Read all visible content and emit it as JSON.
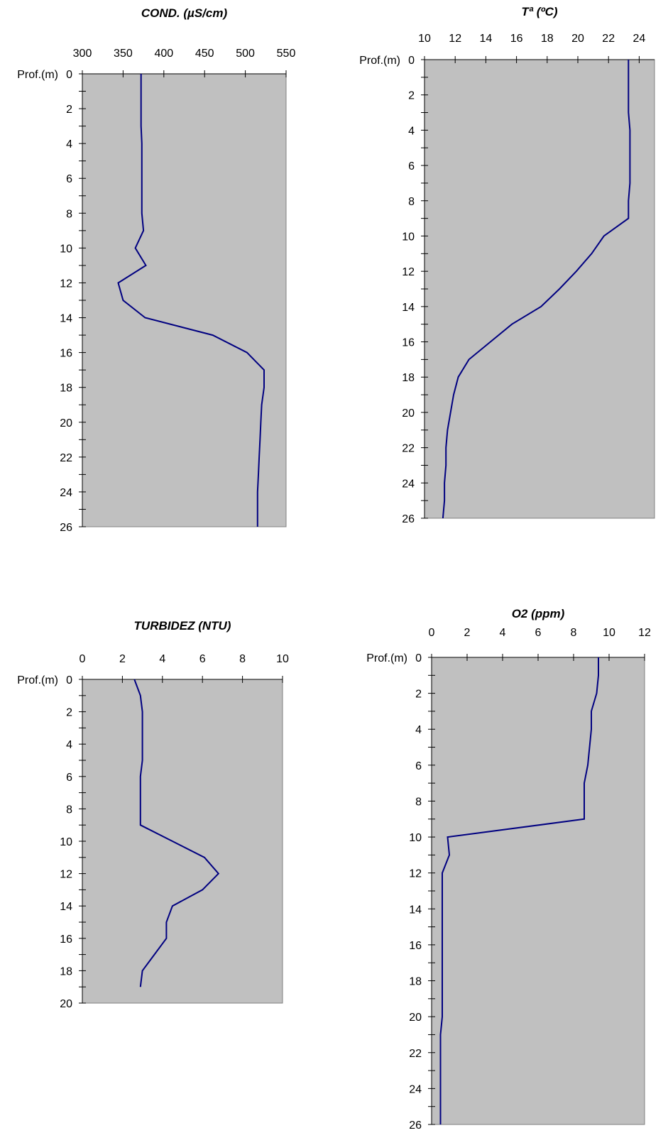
{
  "chart_data": [
    {
      "type": "line",
      "title": "COND. (µS/cm)",
      "ylabel": "Prof.(m)",
      "xlim": [
        300,
        550
      ],
      "ylim": [
        0,
        26
      ],
      "x_ticks": [
        300,
        350,
        400,
        450,
        500,
        550
      ],
      "y_ticks": [
        0,
        2,
        4,
        6,
        8,
        10,
        12,
        14,
        16,
        18,
        20,
        22,
        24,
        26
      ],
      "y_reversed": true,
      "x_axis_position": "top",
      "grid": false,
      "color": "#000080",
      "series": [
        {
          "depth": [
            0,
            1,
            2,
            3,
            4,
            5,
            6,
            7,
            8,
            9,
            10,
            11,
            12,
            13,
            14,
            15,
            16,
            17,
            18,
            19,
            20,
            21,
            22,
            23,
            24,
            25,
            26
          ],
          "values": [
            372,
            372,
            372,
            372,
            373,
            373,
            373,
            373,
            373,
            375,
            365,
            378,
            344,
            350,
            377,
            460,
            502,
            523,
            523,
            520,
            519,
            518,
            517,
            516,
            515,
            515,
            515
          ]
        }
      ]
    },
    {
      "type": "line",
      "title": "Tª (ºC)",
      "ylabel": "Prof.(m)",
      "xlim": [
        10,
        25
      ],
      "ylim": [
        0,
        26
      ],
      "x_ticks": [
        10,
        12,
        14,
        16,
        18,
        20,
        22,
        24
      ],
      "y_ticks": [
        0,
        2,
        4,
        6,
        8,
        10,
        12,
        14,
        16,
        18,
        20,
        22,
        24,
        26
      ],
      "y_reversed": true,
      "x_axis_position": "top",
      "grid": false,
      "color": "#000080",
      "series": [
        {
          "depth": [
            0,
            1,
            2,
            3,
            4,
            5,
            6,
            7,
            8,
            9,
            10,
            11,
            12,
            13,
            14,
            15,
            16,
            17,
            18,
            19,
            20,
            21,
            22,
            23,
            24,
            25,
            26
          ],
          "values": [
            23.3,
            23.3,
            23.3,
            23.3,
            23.4,
            23.4,
            23.4,
            23.4,
            23.3,
            23.3,
            21.7,
            20.9,
            19.9,
            18.8,
            17.6,
            15.7,
            14.3,
            12.9,
            12.2,
            11.9,
            11.7,
            11.5,
            11.4,
            11.4,
            11.3,
            11.3,
            11.2
          ]
        }
      ]
    },
    {
      "type": "line",
      "title": "TURBIDEZ (NTU)",
      "ylabel": "Prof.(m)",
      "xlim": [
        0,
        10
      ],
      "ylim": [
        0,
        20
      ],
      "x_ticks": [
        0,
        2,
        4,
        6,
        8,
        10
      ],
      "y_ticks": [
        0,
        2,
        4,
        6,
        8,
        10,
        12,
        14,
        16,
        18,
        20
      ],
      "y_reversed": true,
      "x_axis_position": "top",
      "grid": false,
      "color": "#000080",
      "series": [
        {
          "depth": [
            0,
            1,
            2,
            3,
            4,
            5,
            6,
            7,
            8,
            9,
            10,
            11,
            12,
            13,
            14,
            15,
            16,
            17,
            18,
            19
          ],
          "values": [
            2.6,
            2.9,
            3.0,
            3.0,
            3.0,
            3.0,
            2.9,
            2.9,
            2.9,
            2.9,
            4.5,
            6.1,
            6.8,
            6.0,
            4.5,
            4.2,
            4.2,
            3.6,
            3.0,
            2.9
          ]
        }
      ]
    },
    {
      "type": "line",
      "title": "O2 (ppm)",
      "ylabel": "Prof.(m)",
      "xlim": [
        0,
        12
      ],
      "ylim": [
        0,
        26
      ],
      "x_ticks": [
        0,
        2,
        4,
        6,
        8,
        10,
        12
      ],
      "y_ticks": [
        0,
        2,
        4,
        6,
        8,
        10,
        12,
        14,
        16,
        18,
        20,
        22,
        24,
        26
      ],
      "y_reversed": true,
      "x_axis_position": "top",
      "grid": false,
      "color": "#000080",
      "series": [
        {
          "depth": [
            0,
            1,
            2,
            3,
            4,
            5,
            6,
            7,
            8,
            9,
            10,
            11,
            12,
            13,
            14,
            15,
            16,
            17,
            18,
            19,
            20,
            21,
            22,
            23,
            24,
            25,
            26
          ],
          "values": [
            9.4,
            9.4,
            9.3,
            9.0,
            9.0,
            8.9,
            8.8,
            8.6,
            8.6,
            8.6,
            0.9,
            1.0,
            0.6,
            0.6,
            0.6,
            0.6,
            0.6,
            0.6,
            0.6,
            0.6,
            0.6,
            0.5,
            0.5,
            0.5,
            0.5,
            0.5,
            0.5
          ]
        }
      ]
    }
  ]
}
